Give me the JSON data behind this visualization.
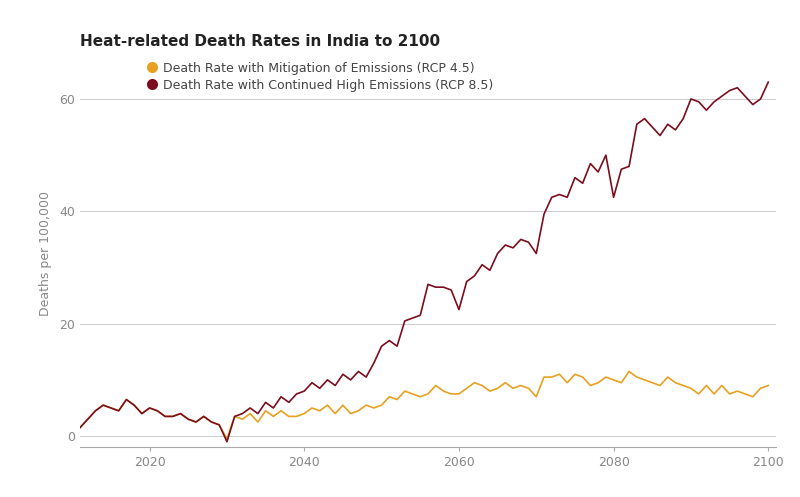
{
  "title": "Heat-related Death Rates in India to 2100",
  "ylabel": "Deaths per 100,000",
  "legend": [
    {
      "label": "Death Rate with Mitigation of Emissions (RCP 4.5)",
      "color": "#E8A020"
    },
    {
      "label": "Death Rate with Continued High Emissions (RCP 8.5)",
      "color": "#7B0D1E"
    }
  ],
  "xlim": [
    2011,
    2101
  ],
  "ylim": [
    -2,
    67
  ],
  "yticks": [
    0,
    20,
    40,
    60
  ],
  "xticks": [
    2020,
    2040,
    2060,
    2080,
    2100
  ],
  "background_color": "#FFFFFF",
  "grid_color": "#CCCCCC",
  "spine_color": "#AAAAAA",
  "tick_label_color": "#888888",
  "title_color": "#222222",
  "rcp45_x": [
    2011,
    2012,
    2013,
    2014,
    2015,
    2016,
    2017,
    2018,
    2019,
    2020,
    2021,
    2022,
    2023,
    2024,
    2025,
    2026,
    2027,
    2028,
    2029,
    2030,
    2031,
    2032,
    2033,
    2034,
    2035,
    2036,
    2037,
    2038,
    2039,
    2040,
    2041,
    2042,
    2043,
    2044,
    2045,
    2046,
    2047,
    2048,
    2049,
    2050,
    2051,
    2052,
    2053,
    2054,
    2055,
    2056,
    2057,
    2058,
    2059,
    2060,
    2061,
    2062,
    2063,
    2064,
    2065,
    2066,
    2067,
    2068,
    2069,
    2070,
    2071,
    2072,
    2073,
    2074,
    2075,
    2076,
    2077,
    2078,
    2079,
    2080,
    2081,
    2082,
    2083,
    2084,
    2085,
    2086,
    2087,
    2088,
    2089,
    2090,
    2091,
    2092,
    2093,
    2094,
    2095,
    2096,
    2097,
    2098,
    2099,
    2100
  ],
  "rcp45_y": [
    1.5,
    3.0,
    4.5,
    5.5,
    5.0,
    4.5,
    6.5,
    5.5,
    4.0,
    5.0,
    4.5,
    3.5,
    3.5,
    4.0,
    3.0,
    2.5,
    3.5,
    2.5,
    2.0,
    -0.5,
    3.5,
    3.0,
    4.0,
    2.5,
    4.5,
    3.5,
    4.5,
    3.5,
    3.5,
    4.0,
    5.0,
    4.5,
    5.5,
    4.0,
    5.5,
    4.0,
    4.5,
    5.5,
    5.0,
    5.5,
    7.0,
    6.5,
    8.0,
    7.5,
    7.0,
    7.5,
    9.0,
    8.0,
    7.5,
    7.5,
    8.5,
    9.5,
    9.0,
    8.0,
    8.5,
    9.5,
    8.5,
    9.0,
    8.5,
    7.0,
    10.5,
    10.5,
    11.0,
    9.5,
    11.0,
    10.5,
    9.0,
    9.5,
    10.5,
    10.0,
    9.5,
    11.5,
    10.5,
    10.0,
    9.5,
    9.0,
    10.5,
    9.5,
    9.0,
    8.5,
    7.5,
    9.0,
    7.5,
    9.0,
    7.5,
    8.0,
    7.5,
    7.0,
    8.5,
    9.0
  ],
  "rcp85_x": [
    2011,
    2012,
    2013,
    2014,
    2015,
    2016,
    2017,
    2018,
    2019,
    2020,
    2021,
    2022,
    2023,
    2024,
    2025,
    2026,
    2027,
    2028,
    2029,
    2030,
    2031,
    2032,
    2033,
    2034,
    2035,
    2036,
    2037,
    2038,
    2039,
    2040,
    2041,
    2042,
    2043,
    2044,
    2045,
    2046,
    2047,
    2048,
    2049,
    2050,
    2051,
    2052,
    2053,
    2054,
    2055,
    2056,
    2057,
    2058,
    2059,
    2060,
    2061,
    2062,
    2063,
    2064,
    2065,
    2066,
    2067,
    2068,
    2069,
    2070,
    2071,
    2072,
    2073,
    2074,
    2075,
    2076,
    2077,
    2078,
    2079,
    2080,
    2081,
    2082,
    2083,
    2084,
    2085,
    2086,
    2087,
    2088,
    2089,
    2090,
    2091,
    2092,
    2093,
    2094,
    2095,
    2096,
    2097,
    2098,
    2099,
    2100
  ],
  "rcp85_y": [
    1.5,
    3.0,
    4.5,
    5.5,
    5.0,
    4.5,
    6.5,
    5.5,
    4.0,
    5.0,
    4.5,
    3.5,
    3.5,
    4.0,
    3.0,
    2.5,
    3.5,
    2.5,
    2.0,
    -1.0,
    3.5,
    4.0,
    5.0,
    4.0,
    6.0,
    5.0,
    7.0,
    6.0,
    7.5,
    8.0,
    9.5,
    8.5,
    10.0,
    9.0,
    11.0,
    10.0,
    11.5,
    10.5,
    13.0,
    16.0,
    17.0,
    16.0,
    20.5,
    21.0,
    21.5,
    27.0,
    26.5,
    26.5,
    26.0,
    22.5,
    27.5,
    28.5,
    30.5,
    29.5,
    32.5,
    34.0,
    33.5,
    35.0,
    34.5,
    32.5,
    39.5,
    42.5,
    43.0,
    42.5,
    46.0,
    45.0,
    48.5,
    47.0,
    50.0,
    42.5,
    47.5,
    48.0,
    55.5,
    56.5,
    55.0,
    53.5,
    55.5,
    54.5,
    56.5,
    60.0,
    59.5,
    58.0,
    59.5,
    60.5,
    61.5,
    62.0,
    60.5,
    59.0,
    60.0,
    63.0
  ]
}
